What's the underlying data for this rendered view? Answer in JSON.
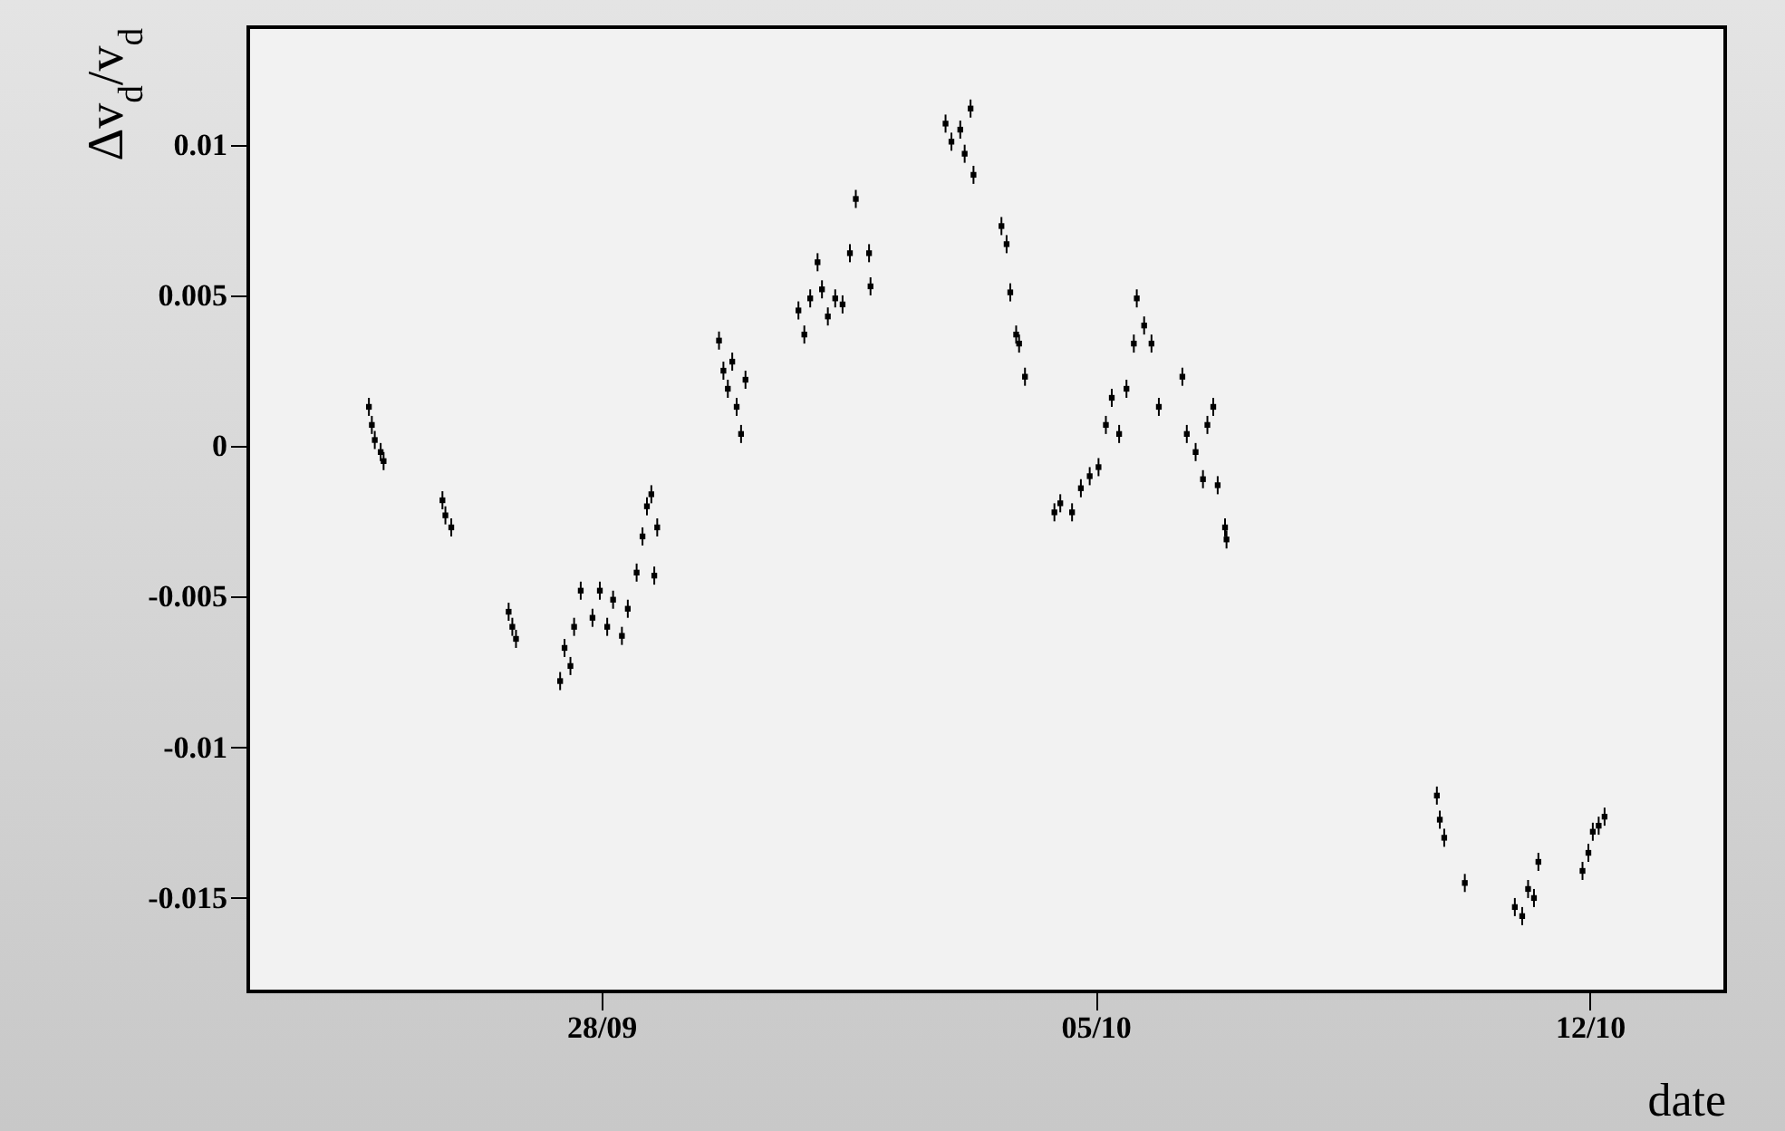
{
  "chart_data": {
    "type": "scatter",
    "xlabel": "date",
    "ylabel": "Δv$_{d}$/v$_{d}$",
    "xlim": [
      "--09-23T00:00",
      "--10-13T22:00"
    ],
    "xticks": [
      {
        "value": "--09-28",
        "label": "28/09"
      },
      {
        "value": "--10-05",
        "label": "05/10"
      },
      {
        "value": "--10-12",
        "label": "12/10"
      }
    ],
    "ylim": [
      -0.0181,
      0.0139
    ],
    "yticks": [
      -0.015,
      -0.01,
      -0.005,
      0,
      0.005,
      0.01
    ],
    "marker": "square",
    "grid": false,
    "series": [
      {
        "color": "#000000",
        "x": [
          "--09-24T17:00",
          "--09-24T18:00",
          "--09-24T19:00",
          "--09-24T21:00",
          "--09-24T22:00",
          "--09-25T18:00",
          "--09-25T19:00",
          "--09-25T21:00",
          "--09-26T16:30",
          "--09-26T17:45",
          "--09-26T19:00",
          "--09-27T10:00",
          "--09-27T11:30",
          "--09-27T13:30",
          "--09-27T14:45",
          "--09-27T17:00",
          "--09-27T21:00",
          "--09-27T23:30",
          "--09-28T02:00",
          "--09-28T04:00",
          "--09-28T07:00",
          "--09-28T09:00",
          "--09-28T12:00",
          "--09-28T14:00",
          "--09-28T15:30",
          "--09-28T17:00",
          "--09-28T18:00",
          "--09-28T19:00",
          "--09-29T16:00",
          "--09-29T17:30",
          "--09-29T19:00",
          "--09-29T20:30",
          "--09-29T22:00",
          "--09-29T23:30",
          "--09-30T01:00",
          "--09-30T19:00",
          "--09-30T21:00",
          "--09-30T23:00",
          "--10-01T01:30",
          "--10-01T03:00",
          "--10-01T05:00",
          "--10-01T07:30",
          "--10-01T10:00",
          "--10-01T12:30",
          "--10-01T14:30",
          "--10-01T19:00",
          "--10-01T19:30",
          "--10-02T21:00",
          "--10-02T23:00",
          "--10-03T02:00",
          "--10-03T03:30",
          "--10-03T05:30",
          "--10-03T06:30",
          "--10-03T16:00",
          "--10-03T17:45",
          "--10-03T19:00",
          "--10-03T21:00",
          "--10-03T22:00",
          "--10-04T00:00",
          "--10-04T10:00",
          "--10-04T12:00",
          "--10-04T16:00",
          "--10-04T19:00",
          "--10-04T22:00",
          "--10-05T01:00",
          "--10-05T03:30",
          "--10-05T05:30",
          "--10-05T08:00",
          "--10-05T10:30",
          "--10-05T13:00",
          "--10-05T14:00",
          "--10-05T16:30",
          "--10-05T19:00",
          "--10-05T21:30",
          "--10-06T05:30",
          "--10-06T07:00",
          "--10-06T10:00",
          "--10-06T12:30",
          "--10-06T14:00",
          "--10-06T16:00",
          "--10-06T17:30",
          "--10-06T20:00",
          "--10-06T20:30",
          "--10-09T20:00",
          "--10-09T21:00",
          "--10-09T22:30",
          "--10-10T05:30",
          "--10-10T22:30",
          "--10-11T01:00",
          "--10-11T03:00",
          "--10-11T05:00",
          "--10-11T06:30",
          "--10-11T21:30",
          "--10-11T23:30",
          "--10-12T01:00",
          "--10-12T03:00",
          "--10-12T05:00"
        ],
        "values": [
          0.0013,
          0.0007,
          0.0002,
          -0.0002,
          -0.0005,
          -0.0018,
          -0.0023,
          -0.0027,
          -0.0055,
          -0.006,
          -0.0064,
          -0.0078,
          -0.0067,
          -0.0073,
          -0.006,
          -0.0048,
          -0.0057,
          -0.0048,
          -0.006,
          -0.0051,
          -0.0063,
          -0.0054,
          -0.0042,
          -0.003,
          -0.002,
          -0.0016,
          -0.0043,
          -0.0027,
          0.0035,
          0.0025,
          0.0019,
          0.0028,
          0.0013,
          0.0004,
          0.0022,
          0.0045,
          0.0037,
          0.0049,
          0.0061,
          0.0052,
          0.0043,
          0.0049,
          0.0047,
          0.0064,
          0.0082,
          0.0064,
          0.0053,
          0.0107,
          0.0101,
          0.0105,
          0.0097,
          0.0112,
          0.009,
          0.0073,
          0.0067,
          0.0051,
          0.0037,
          0.0034,
          0.0023,
          -0.0022,
          -0.0019,
          -0.0022,
          -0.0014,
          -0.001,
          -0.0007,
          0.0007,
          0.0016,
          0.0004,
          0.0019,
          0.0034,
          0.0049,
          0.004,
          0.0034,
          0.0013,
          0.0023,
          0.0004,
          -0.0002,
          -0.0011,
          0.0007,
          0.0013,
          -0.0013,
          -0.0027,
          -0.0031,
          -0.0116,
          -0.0124,
          -0.013,
          -0.0145,
          -0.0153,
          -0.0156,
          -0.0147,
          -0.015,
          -0.0138,
          -0.0141,
          -0.0135,
          -0.0128,
          -0.0126,
          -0.0123
        ],
        "errors": [
          0.0003,
          0.0003,
          0.0003,
          0.0003,
          0.0003,
          0.0003,
          0.0003,
          0.0003,
          0.0003,
          0.0003,
          0.0003,
          0.0003,
          0.0003,
          0.0003,
          0.0003,
          0.0003,
          0.0003,
          0.0003,
          0.0003,
          0.0003,
          0.0003,
          0.0003,
          0.0003,
          0.0003,
          0.0003,
          0.0003,
          0.0003,
          0.0003,
          0.0003,
          0.0003,
          0.0003,
          0.0003,
          0.0003,
          0.0003,
          0.0003,
          0.0003,
          0.0003,
          0.0003,
          0.0003,
          0.0003,
          0.0003,
          0.0003,
          0.0003,
          0.0003,
          0.0003,
          0.0003,
          0.0003,
          0.0003,
          0.0003,
          0.0003,
          0.0003,
          0.0003,
          0.0003,
          0.0003,
          0.0003,
          0.0003,
          0.0003,
          0.0003,
          0.0003,
          0.0003,
          0.0003,
          0.0003,
          0.0003,
          0.0003,
          0.0003,
          0.0003,
          0.0003,
          0.0003,
          0.0003,
          0.0003,
          0.0003,
          0.0003,
          0.0003,
          0.0003,
          0.0003,
          0.0003,
          0.0003,
          0.0003,
          0.0003,
          0.0003,
          0.0003,
          0.0003,
          0.0003,
          0.0003,
          0.0003,
          0.0003,
          0.0003,
          0.0003,
          0.0003,
          0.0003,
          0.0003,
          0.0003,
          0.0003,
          0.0003,
          0.0003,
          0.0003,
          0.0003
        ]
      }
    ]
  }
}
